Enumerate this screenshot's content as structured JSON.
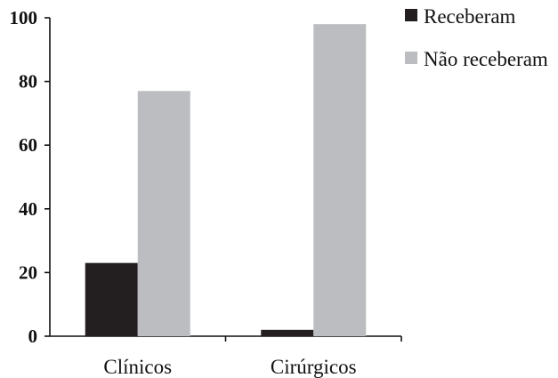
{
  "chart_data": {
    "type": "bar",
    "title": "",
    "xlabel": "",
    "ylabel": "",
    "categories": [
      "Clínicos",
      "Cirúrgicos"
    ],
    "series": [
      {
        "name": "Receberam",
        "values": [
          23,
          2
        ],
        "color": "#231f20"
      },
      {
        "name": "Não receberam",
        "values": [
          77,
          98
        ],
        "color": "#bcbdc0"
      }
    ],
    "ylim": [
      0,
      100
    ],
    "yticks": [
      "0",
      "20",
      "40",
      "60",
      "80",
      "100"
    ],
    "grid": false,
    "legend_position": "top-right"
  }
}
